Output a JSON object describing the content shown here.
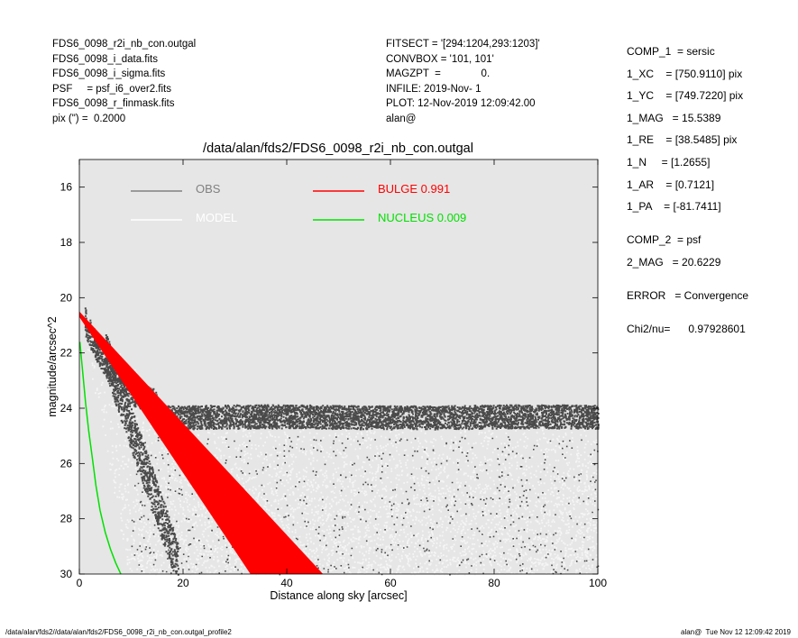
{
  "header_left": [
    "FDS6_0098_r2i_nb_con.outgal",
    "FDS6_0098_i_data.fits",
    "FDS6_0098_i_sigma.fits",
    "PSF     = psf_i6_over2.fits",
    "FDS6_0098_r_finmask.fits",
    "pix (\") =  0.2000"
  ],
  "header_mid": [
    "FITSECT = '[294:1204,293:1203]'",
    "CONVBOX = '101, 101'",
    "MAGZPT  =              0.",
    "INFILE: 2019-Nov- 1",
    "PLOT: 12-Nov-2019 12:09:42.00",
    "alan@"
  ],
  "header_right": {
    "comp1": [
      "COMP_1  = sersic",
      "1_XC    = [750.9110] pix",
      "1_YC    = [749.7220] pix",
      "1_MAG   = 15.5389",
      "1_RE    = [38.5485] pix",
      "1_N     = [1.2655]",
      "1_AR    = [0.7121]",
      "1_PA    = [-81.7411]"
    ],
    "comp2": [
      "COMP_2  = psf",
      "2_MAG   = 20.6229"
    ],
    "error": "ERROR   = Convergence",
    "chi2": "Chi2/nu=      0.97928601"
  },
  "footer": {
    "left": "/data/alan/fds2//data/alan/fds2/FDS6_0098_r2i_nb_con.outgal_profile2",
    "right": "alan@  Tue Nov 12 12:09:42 2019"
  },
  "colors": {
    "plot_bg": "#e6e6e6",
    "obs": "#808080",
    "model": "#ffffff",
    "bulge": "#ff0000",
    "nucleus": "#00e000",
    "obs_points": "#4a4a4a",
    "model_points": "#f5f5f5"
  },
  "chart_data": {
    "type": "scatter",
    "title": "/data/alan/fds2/FDS6_0098_r2i_nb_con.outgal",
    "xlabel": "Distance along sky [arcsec]",
    "ylabel": "magnitude/arcsec^2",
    "xlim": [
      0,
      100
    ],
    "ylim": [
      30,
      15
    ],
    "y_inverted": true,
    "xticks": [
      0,
      20,
      40,
      60,
      80,
      100
    ],
    "yticks": [
      16,
      18,
      20,
      22,
      24,
      26,
      28,
      30
    ],
    "grid": false,
    "legend": [
      {
        "label": "OBS",
        "series": "obs"
      },
      {
        "label": "MODEL",
        "series": "model"
      },
      {
        "label": "BULGE  0.991",
        "series": "bulge"
      },
      {
        "label": "NUCLEUS  0.009",
        "series": "nucleus"
      }
    ],
    "series": [
      {
        "name": "OBS",
        "key": "obs",
        "kind": "points",
        "description_points": [
          [
            0,
            20.2
          ],
          [
            5,
            22.2
          ],
          [
            10,
            23.4
          ],
          [
            15,
            24.2
          ],
          [
            20,
            24.4
          ],
          [
            40,
            24.3
          ],
          [
            60,
            24.2
          ],
          [
            80,
            24.3
          ],
          [
            100,
            24.4
          ]
        ],
        "spread_upper": [
          [
            5,
            21.5
          ],
          [
            10,
            22.5
          ],
          [
            15,
            23.6
          ],
          [
            20,
            23.8
          ],
          [
            100,
            23.7
          ]
        ],
        "spread_lower": [
          [
            5,
            24.5
          ],
          [
            10,
            27.5
          ],
          [
            15,
            30.0
          ],
          [
            100,
            30.0
          ]
        ]
      },
      {
        "name": "MODEL",
        "key": "model",
        "kind": "points",
        "description_points": [
          [
            0,
            20.5
          ],
          [
            10,
            24.0
          ],
          [
            20,
            27.0
          ],
          [
            30,
            28.8
          ],
          [
            40,
            29.8
          ],
          [
            100,
            30.0
          ]
        ]
      },
      {
        "name": "BULGE  0.991",
        "key": "bulge",
        "kind": "band",
        "upper": [
          [
            0,
            20.5
          ],
          [
            47,
            30.0
          ]
        ],
        "lower": [
          [
            0,
            20.7
          ],
          [
            33,
            30.0
          ]
        ]
      },
      {
        "name": "NUCLEUS  0.009",
        "key": "nucleus",
        "kind": "line",
        "points": [
          [
            0.1,
            21.6
          ],
          [
            0.4,
            22.2
          ],
          [
            0.8,
            23.0
          ],
          [
            1.2,
            23.8
          ],
          [
            1.8,
            24.8
          ],
          [
            2.5,
            25.8
          ],
          [
            3.2,
            26.8
          ],
          [
            4.0,
            27.7
          ],
          [
            5.0,
            28.5
          ],
          [
            6.0,
            29.1
          ],
          [
            7.0,
            29.6
          ],
          [
            8.0,
            30.0
          ]
        ]
      }
    ]
  }
}
